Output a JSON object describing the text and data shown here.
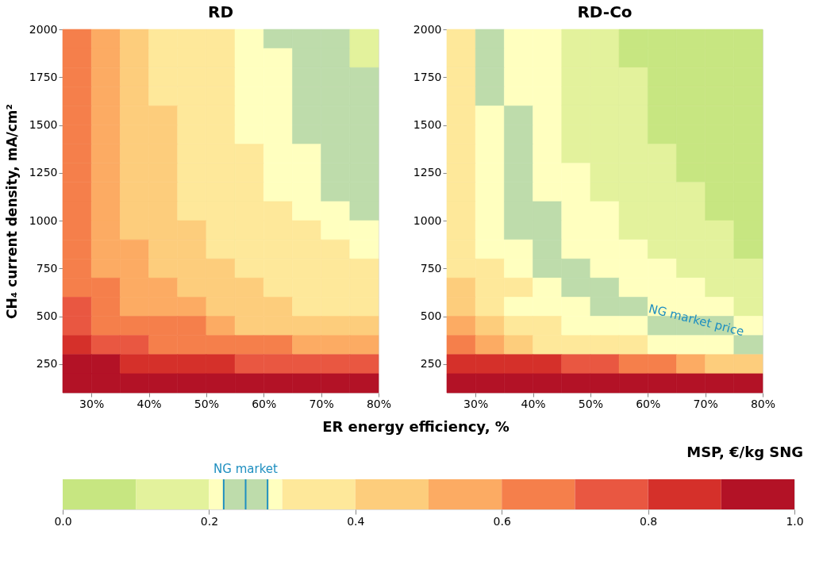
{
  "chart_data": [
    {
      "type": "scatter",
      "marker": "square",
      "title": "RD",
      "xlabel": "ER energy efficiency, %",
      "ylabel": "CH₄ current density,  mA/cm²",
      "xlim": [
        25,
        80
      ],
      "xticks": [
        {
          "value": 30,
          "label": "30%"
        },
        {
          "value": 40,
          "label": "40%"
        },
        {
          "value": 50,
          "label": "50%"
        },
        {
          "value": 60,
          "label": "60%"
        },
        {
          "value": 70,
          "label": "70%"
        },
        {
          "value": 80,
          "label": "80%"
        }
      ],
      "ylim": [
        100,
        2000
      ],
      "yticks": [
        250,
        500,
        750,
        1000,
        1250,
        1500,
        1750,
        2000
      ],
      "series": [
        {
          "x": [
            27.5,
            32.5,
            37.5,
            42.5,
            47.5,
            52.5,
            57.5,
            62.5,
            67.5,
            72.5,
            77.5
          ],
          "values": [
            1950,
            1950,
            1950,
            1950,
            1950,
            1950,
            1950,
            1950,
            1950,
            1950,
            1950
          ],
          "colors": [
            "#f57f4b",
            "#fcab63",
            "#fdcd7c",
            "#fee89a",
            "#fee89a",
            "#fee89a",
            "#ffffbf",
            "#bedcab",
            "#bedcab",
            "#bedcab",
            "#e3f29c"
          ]
        },
        {
          "x": [
            27.5,
            32.5,
            37.5,
            42.5,
            47.5,
            52.5,
            57.5,
            62.5,
            67.5,
            72.5,
            77.5
          ],
          "values": [
            1850,
            1850,
            1850,
            1850,
            1850,
            1850,
            1850,
            1850,
            1850,
            1850,
            1850
          ],
          "colors": [
            "#f57f4b",
            "#fcab63",
            "#fdcd7c",
            "#fee89a",
            "#fee89a",
            "#fee89a",
            "#ffffbf",
            "#ffffbf",
            "#bedcab",
            "#bedcab",
            "#e3f29c"
          ]
        },
        {
          "x": [
            27.5,
            32.5,
            37.5,
            42.5,
            47.5,
            52.5,
            57.5,
            62.5,
            67.5,
            72.5,
            77.5
          ],
          "values": [
            1750,
            1750,
            1750,
            1750,
            1750,
            1750,
            1750,
            1750,
            1750,
            1750,
            1750
          ],
          "colors": [
            "#f57f4b",
            "#fcab63",
            "#fdcd7c",
            "#fee89a",
            "#fee89a",
            "#fee89a",
            "#ffffbf",
            "#ffffbf",
            "#bedcab",
            "#bedcab",
            "#bedcab"
          ]
        },
        {
          "x": [
            27.5,
            32.5,
            37.5,
            42.5,
            47.5,
            52.5,
            57.5,
            62.5,
            67.5,
            72.5,
            77.5
          ],
          "values": [
            1650,
            1650,
            1650,
            1650,
            1650,
            1650,
            1650,
            1650,
            1650,
            1650,
            1650
          ],
          "colors": [
            "#f57f4b",
            "#fcab63",
            "#fdcd7c",
            "#fee89a",
            "#fee89a",
            "#fee89a",
            "#ffffbf",
            "#ffffbf",
            "#bedcab",
            "#bedcab",
            "#bedcab"
          ]
        },
        {
          "x": [
            27.5,
            32.5,
            37.5,
            42.5,
            47.5,
            52.5,
            57.5,
            62.5,
            67.5,
            72.5,
            77.5
          ],
          "values": [
            1550,
            1550,
            1550,
            1550,
            1550,
            1550,
            1550,
            1550,
            1550,
            1550,
            1550
          ],
          "colors": [
            "#f57f4b",
            "#fcab63",
            "#fdcd7c",
            "#fdcd7c",
            "#fee89a",
            "#fee89a",
            "#ffffbf",
            "#ffffbf",
            "#bedcab",
            "#bedcab",
            "#bedcab"
          ]
        },
        {
          "x": [
            27.5,
            32.5,
            37.5,
            42.5,
            47.5,
            52.5,
            57.5,
            62.5,
            67.5,
            72.5,
            77.5
          ],
          "values": [
            1450,
            1450,
            1450,
            1450,
            1450,
            1450,
            1450,
            1450,
            1450,
            1450,
            1450
          ],
          "colors": [
            "#f57f4b",
            "#fcab63",
            "#fdcd7c",
            "#fdcd7c",
            "#fee89a",
            "#fee89a",
            "#ffffbf",
            "#ffffbf",
            "#bedcab",
            "#bedcab",
            "#bedcab"
          ]
        },
        {
          "x": [
            27.5,
            32.5,
            37.5,
            42.5,
            47.5,
            52.5,
            57.5,
            62.5,
            67.5,
            72.5,
            77.5
          ],
          "values": [
            1350,
            1350,
            1350,
            1350,
            1350,
            1350,
            1350,
            1350,
            1350,
            1350,
            1350
          ],
          "colors": [
            "#f57f4b",
            "#fcab63",
            "#fdcd7c",
            "#fdcd7c",
            "#fee89a",
            "#fee89a",
            "#fee89a",
            "#ffffbf",
            "#ffffbf",
            "#bedcab",
            "#bedcab"
          ]
        },
        {
          "x": [
            27.5,
            32.5,
            37.5,
            42.5,
            47.5,
            52.5,
            57.5,
            62.5,
            67.5,
            72.5,
            77.5
          ],
          "values": [
            1250,
            1250,
            1250,
            1250,
            1250,
            1250,
            1250,
            1250,
            1250,
            1250,
            1250
          ],
          "colors": [
            "#f57f4b",
            "#fcab63",
            "#fdcd7c",
            "#fdcd7c",
            "#fee89a",
            "#fee89a",
            "#fee89a",
            "#ffffbf",
            "#ffffbf",
            "#bedcab",
            "#bedcab"
          ]
        },
        {
          "x": [
            27.5,
            32.5,
            37.5,
            42.5,
            47.5,
            52.5,
            57.5,
            62.5,
            67.5,
            72.5,
            77.5
          ],
          "values": [
            1150,
            1150,
            1150,
            1150,
            1150,
            1150,
            1150,
            1150,
            1150,
            1150,
            1150
          ],
          "colors": [
            "#f57f4b",
            "#fcab63",
            "#fdcd7c",
            "#fdcd7c",
            "#fee89a",
            "#fee89a",
            "#fee89a",
            "#ffffbf",
            "#ffffbf",
            "#bedcab",
            "#bedcab"
          ]
        },
        {
          "x": [
            27.5,
            32.5,
            37.5,
            42.5,
            47.5,
            52.5,
            57.5,
            62.5,
            67.5,
            72.5,
            77.5
          ],
          "values": [
            1050,
            1050,
            1050,
            1050,
            1050,
            1050,
            1050,
            1050,
            1050,
            1050,
            1050
          ],
          "colors": [
            "#f57f4b",
            "#fcab63",
            "#fdcd7c",
            "#fdcd7c",
            "#fee89a",
            "#fee89a",
            "#fee89a",
            "#fee89a",
            "#ffffbf",
            "#ffffbf",
            "#bedcab"
          ]
        },
        {
          "x": [
            27.5,
            32.5,
            37.5,
            42.5,
            47.5,
            52.5,
            57.5,
            62.5,
            67.5,
            72.5,
            77.5
          ],
          "values": [
            950,
            950,
            950,
            950,
            950,
            950,
            950,
            950,
            950,
            950,
            950
          ],
          "colors": [
            "#f57f4b",
            "#fcab63",
            "#fdcd7c",
            "#fdcd7c",
            "#fdcd7c",
            "#fee89a",
            "#fee89a",
            "#fee89a",
            "#fee89a",
            "#ffffbf",
            "#ffffbf"
          ]
        },
        {
          "x": [
            27.5,
            32.5,
            37.5,
            42.5,
            47.5,
            52.5,
            57.5,
            62.5,
            67.5,
            72.5,
            77.5
          ],
          "values": [
            850,
            850,
            850,
            850,
            850,
            850,
            850,
            850,
            850,
            850,
            850
          ],
          "colors": [
            "#f57f4b",
            "#fcab63",
            "#fcab63",
            "#fdcd7c",
            "#fdcd7c",
            "#fee89a",
            "#fee89a",
            "#fee89a",
            "#fee89a",
            "#fee89a",
            "#ffffbf"
          ]
        },
        {
          "x": [
            27.5,
            32.5,
            37.5,
            42.5,
            47.5,
            52.5,
            57.5,
            62.5,
            67.5,
            72.5,
            77.5
          ],
          "values": [
            750,
            750,
            750,
            750,
            750,
            750,
            750,
            750,
            750,
            750,
            750
          ],
          "colors": [
            "#f57f4b",
            "#fcab63",
            "#fcab63",
            "#fdcd7c",
            "#fdcd7c",
            "#fdcd7c",
            "#fee89a",
            "#fee89a",
            "#fee89a",
            "#fee89a",
            "#fee89a"
          ]
        },
        {
          "x": [
            27.5,
            32.5,
            37.5,
            42.5,
            47.5,
            52.5,
            57.5,
            62.5,
            67.5,
            72.5,
            77.5
          ],
          "values": [
            650,
            650,
            650,
            650,
            650,
            650,
            650,
            650,
            650,
            650,
            650
          ],
          "colors": [
            "#f57f4b",
            "#f57f4b",
            "#fcab63",
            "#fcab63",
            "#fdcd7c",
            "#fdcd7c",
            "#fdcd7c",
            "#fee89a",
            "#fee89a",
            "#fee89a",
            "#fee89a"
          ]
        },
        {
          "x": [
            27.5,
            32.5,
            37.5,
            42.5,
            47.5,
            52.5,
            57.5,
            62.5,
            67.5,
            72.5,
            77.5
          ],
          "values": [
            550,
            550,
            550,
            550,
            550,
            550,
            550,
            550,
            550,
            550,
            550
          ],
          "colors": [
            "#e95741",
            "#f57f4b",
            "#fcab63",
            "#fcab63",
            "#fcab63",
            "#fdcd7c",
            "#fdcd7c",
            "#fdcd7c",
            "#fee89a",
            "#fee89a",
            "#fee89a"
          ]
        },
        {
          "x": [
            27.5,
            32.5,
            37.5,
            42.5,
            47.5,
            52.5,
            57.5,
            62.5,
            67.5,
            72.5,
            77.5
          ],
          "values": [
            450,
            450,
            450,
            450,
            450,
            450,
            450,
            450,
            450,
            450,
            450
          ],
          "colors": [
            "#e95741",
            "#f57f4b",
            "#f57f4b",
            "#f57f4b",
            "#f57f4b",
            "#fcab63",
            "#fdcd7c",
            "#fdcd7c",
            "#fdcd7c",
            "#fdcd7c",
            "#fdcd7c"
          ]
        },
        {
          "x": [
            27.5,
            32.5,
            37.5,
            42.5,
            47.5,
            52.5,
            57.5,
            62.5,
            67.5,
            72.5,
            77.5
          ],
          "values": [
            350,
            350,
            350,
            350,
            350,
            350,
            350,
            350,
            350,
            350,
            350
          ],
          "colors": [
            "#d5302a",
            "#e95741",
            "#e95741",
            "#f57f4b",
            "#f57f4b",
            "#f57f4b",
            "#f57f4b",
            "#f57f4b",
            "#fcab63",
            "#fcab63",
            "#fcab63"
          ]
        },
        {
          "x": [
            27.5,
            32.5,
            37.5,
            42.5,
            47.5,
            52.5,
            57.5,
            62.5,
            67.5,
            72.5,
            77.5
          ],
          "values": [
            250,
            250,
            250,
            250,
            250,
            250,
            250,
            250,
            250,
            250,
            250
          ],
          "colors": [
            "#b31226",
            "#b31226",
            "#d5302a",
            "#d5302a",
            "#d5302a",
            "#d5302a",
            "#e95741",
            "#e95741",
            "#e95741",
            "#e95741",
            "#e95741"
          ]
        },
        {
          "x": [
            27.5,
            32.5,
            37.5,
            42.5,
            47.5,
            52.5,
            57.5,
            62.5,
            67.5,
            72.5,
            77.5
          ],
          "values": [
            150,
            150,
            150,
            150,
            150,
            150,
            150,
            150,
            150,
            150,
            150
          ],
          "colors": [
            "#b31226",
            "#b31226",
            "#b31226",
            "#b31226",
            "#b31226",
            "#b31226",
            "#b31226",
            "#b31226",
            "#b31226",
            "#b31226",
            "#b31226"
          ]
        }
      ]
    },
    {
      "type": "scatter",
      "marker": "square",
      "title": "RD-Co",
      "xlim": [
        25,
        80
      ],
      "xticks": [
        {
          "value": 30,
          "label": "30%"
        },
        {
          "value": 40,
          "label": "40%"
        },
        {
          "value": 50,
          "label": "50%"
        },
        {
          "value": 60,
          "label": "60%"
        },
        {
          "value": 70,
          "label": "70%"
        },
        {
          "value": 80,
          "label": "80%"
        }
      ],
      "ylim": [
        100,
        2000
      ],
      "yticks": [
        250,
        500,
        750,
        1000,
        1250,
        1500,
        1750,
        2000
      ],
      "annotations": [
        "NG market price"
      ],
      "series": [
        {
          "x": [
            27.5,
            32.5,
            37.5,
            42.5,
            47.5,
            52.5,
            57.5,
            62.5,
            67.5,
            72.5,
            77.5
          ],
          "values": [
            1950,
            1950,
            1950,
            1950,
            1950,
            1950,
            1950,
            1950,
            1950,
            1950,
            1950
          ],
          "colors": [
            "#fee89a",
            "#bedcab",
            "#ffffbf",
            "#ffffbf",
            "#e3f29c",
            "#e3f29c",
            "#c7e681",
            "#c7e681",
            "#c7e681",
            "#c7e681",
            "#c7e681"
          ]
        },
        {
          "x": [
            27.5,
            32.5,
            37.5,
            42.5,
            47.5,
            52.5,
            57.5,
            62.5,
            67.5,
            72.5,
            77.5
          ],
          "values": [
            1850,
            1850,
            1850,
            1850,
            1850,
            1850,
            1850,
            1850,
            1850,
            1850,
            1850
          ],
          "colors": [
            "#fee89a",
            "#bedcab",
            "#ffffbf",
            "#ffffbf",
            "#e3f29c",
            "#e3f29c",
            "#c7e681",
            "#c7e681",
            "#c7e681",
            "#c7e681",
            "#c7e681"
          ]
        },
        {
          "x": [
            27.5,
            32.5,
            37.5,
            42.5,
            47.5,
            52.5,
            57.5,
            62.5,
            67.5,
            72.5,
            77.5
          ],
          "values": [
            1750,
            1750,
            1750,
            1750,
            1750,
            1750,
            1750,
            1750,
            1750,
            1750,
            1750
          ],
          "colors": [
            "#fee89a",
            "#bedcab",
            "#ffffbf",
            "#ffffbf",
            "#e3f29c",
            "#e3f29c",
            "#e3f29c",
            "#c7e681",
            "#c7e681",
            "#c7e681",
            "#c7e681"
          ]
        },
        {
          "x": [
            27.5,
            32.5,
            37.5,
            42.5,
            47.5,
            52.5,
            57.5,
            62.5,
            67.5,
            72.5,
            77.5
          ],
          "values": [
            1650,
            1650,
            1650,
            1650,
            1650,
            1650,
            1650,
            1650,
            1650,
            1650,
            1650
          ],
          "colors": [
            "#fee89a",
            "#bedcab",
            "#ffffbf",
            "#ffffbf",
            "#e3f29c",
            "#e3f29c",
            "#e3f29c",
            "#c7e681",
            "#c7e681",
            "#c7e681",
            "#c7e681"
          ]
        },
        {
          "x": [
            27.5,
            32.5,
            37.5,
            42.5,
            47.5,
            52.5,
            57.5,
            62.5,
            67.5,
            72.5,
            77.5
          ],
          "values": [
            1550,
            1550,
            1550,
            1550,
            1550,
            1550,
            1550,
            1550,
            1550,
            1550,
            1550
          ],
          "colors": [
            "#fee89a",
            "#ffffbf",
            "#bedcab",
            "#ffffbf",
            "#e3f29c",
            "#e3f29c",
            "#e3f29c",
            "#c7e681",
            "#c7e681",
            "#c7e681",
            "#c7e681"
          ]
        },
        {
          "x": [
            27.5,
            32.5,
            37.5,
            42.5,
            47.5,
            52.5,
            57.5,
            62.5,
            67.5,
            72.5,
            77.5
          ],
          "values": [
            1450,
            1450,
            1450,
            1450,
            1450,
            1450,
            1450,
            1450,
            1450,
            1450,
            1450
          ],
          "colors": [
            "#fee89a",
            "#ffffbf",
            "#bedcab",
            "#ffffbf",
            "#e3f29c",
            "#e3f29c",
            "#e3f29c",
            "#c7e681",
            "#c7e681",
            "#c7e681",
            "#c7e681"
          ]
        },
        {
          "x": [
            27.5,
            32.5,
            37.5,
            42.5,
            47.5,
            52.5,
            57.5,
            62.5,
            67.5,
            72.5,
            77.5
          ],
          "values": [
            1350,
            1350,
            1350,
            1350,
            1350,
            1350,
            1350,
            1350,
            1350,
            1350,
            1350
          ],
          "colors": [
            "#fee89a",
            "#ffffbf",
            "#bedcab",
            "#ffffbf",
            "#e3f29c",
            "#e3f29c",
            "#e3f29c",
            "#e3f29c",
            "#c7e681",
            "#c7e681",
            "#c7e681"
          ]
        },
        {
          "x": [
            27.5,
            32.5,
            37.5,
            42.5,
            47.5,
            52.5,
            57.5,
            62.5,
            67.5,
            72.5,
            77.5
          ],
          "values": [
            1250,
            1250,
            1250,
            1250,
            1250,
            1250,
            1250,
            1250,
            1250,
            1250,
            1250
          ],
          "colors": [
            "#fee89a",
            "#ffffbf",
            "#bedcab",
            "#ffffbf",
            "#ffffbf",
            "#e3f29c",
            "#e3f29c",
            "#e3f29c",
            "#c7e681",
            "#c7e681",
            "#c7e681"
          ]
        },
        {
          "x": [
            27.5,
            32.5,
            37.5,
            42.5,
            47.5,
            52.5,
            57.5,
            62.5,
            67.5,
            72.5,
            77.5
          ],
          "values": [
            1150,
            1150,
            1150,
            1150,
            1150,
            1150,
            1150,
            1150,
            1150,
            1150,
            1150
          ],
          "colors": [
            "#fee89a",
            "#ffffbf",
            "#bedcab",
            "#ffffbf",
            "#ffffbf",
            "#e3f29c",
            "#e3f29c",
            "#e3f29c",
            "#e3f29c",
            "#c7e681",
            "#c7e681"
          ]
        },
        {
          "x": [
            27.5,
            32.5,
            37.5,
            42.5,
            47.5,
            52.5,
            57.5,
            62.5,
            67.5,
            72.5,
            77.5
          ],
          "values": [
            1050,
            1050,
            1050,
            1050,
            1050,
            1050,
            1050,
            1050,
            1050,
            1050,
            1050
          ],
          "colors": [
            "#fee89a",
            "#ffffbf",
            "#bedcab",
            "#bedcab",
            "#ffffbf",
            "#ffffbf",
            "#e3f29c",
            "#e3f29c",
            "#e3f29c",
            "#c7e681",
            "#c7e681"
          ]
        },
        {
          "x": [
            27.5,
            32.5,
            37.5,
            42.5,
            47.5,
            52.5,
            57.5,
            62.5,
            67.5,
            72.5,
            77.5
          ],
          "values": [
            950,
            950,
            950,
            950,
            950,
            950,
            950,
            950,
            950,
            950,
            950
          ],
          "colors": [
            "#fee89a",
            "#ffffbf",
            "#bedcab",
            "#bedcab",
            "#ffffbf",
            "#ffffbf",
            "#e3f29c",
            "#e3f29c",
            "#e3f29c",
            "#e3f29c",
            "#c7e681"
          ]
        },
        {
          "x": [
            27.5,
            32.5,
            37.5,
            42.5,
            47.5,
            52.5,
            57.5,
            62.5,
            67.5,
            72.5,
            77.5
          ],
          "values": [
            850,
            850,
            850,
            850,
            850,
            850,
            850,
            850,
            850,
            850,
            850
          ],
          "colors": [
            "#fee89a",
            "#ffffbf",
            "#ffffbf",
            "#bedcab",
            "#ffffbf",
            "#ffffbf",
            "#ffffbf",
            "#e3f29c",
            "#e3f29c",
            "#e3f29c",
            "#c7e681"
          ]
        },
        {
          "x": [
            27.5,
            32.5,
            37.5,
            42.5,
            47.5,
            52.5,
            57.5,
            62.5,
            67.5,
            72.5,
            77.5
          ],
          "values": [
            750,
            750,
            750,
            750,
            750,
            750,
            750,
            750,
            750,
            750,
            750
          ],
          "colors": [
            "#fee89a",
            "#fee89a",
            "#ffffbf",
            "#bedcab",
            "#bedcab",
            "#ffffbf",
            "#ffffbf",
            "#ffffbf",
            "#e3f29c",
            "#e3f29c",
            "#e3f29c"
          ]
        },
        {
          "x": [
            27.5,
            32.5,
            37.5,
            42.5,
            47.5,
            52.5,
            57.5,
            62.5,
            67.5,
            72.5,
            77.5
          ],
          "values": [
            650,
            650,
            650,
            650,
            650,
            650,
            650,
            650,
            650,
            650,
            650
          ],
          "colors": [
            "#fdcd7c",
            "#fee89a",
            "#fee89a",
            "#ffffbf",
            "#bedcab",
            "#bedcab",
            "#ffffbf",
            "#ffffbf",
            "#ffffbf",
            "#e3f29c",
            "#e3f29c"
          ]
        },
        {
          "x": [
            27.5,
            32.5,
            37.5,
            42.5,
            47.5,
            52.5,
            57.5,
            62.5,
            67.5,
            72.5,
            77.5
          ],
          "values": [
            550,
            550,
            550,
            550,
            550,
            550,
            550,
            550,
            550,
            550,
            550
          ],
          "colors": [
            "#fdcd7c",
            "#fee89a",
            "#ffffbf",
            "#ffffbf",
            "#ffffbf",
            "#bedcab",
            "#bedcab",
            "#ffffbf",
            "#ffffbf",
            "#ffffbf",
            "#e3f29c"
          ]
        },
        {
          "x": [
            27.5,
            32.5,
            37.5,
            42.5,
            47.5,
            52.5,
            57.5,
            62.5,
            67.5,
            72.5,
            77.5
          ],
          "values": [
            450,
            450,
            450,
            450,
            450,
            450,
            450,
            450,
            450,
            450,
            450
          ],
          "colors": [
            "#fcab63",
            "#fdcd7c",
            "#fee89a",
            "#fee89a",
            "#ffffbf",
            "#ffffbf",
            "#ffffbf",
            "#bedcab",
            "#bedcab",
            "#bedcab",
            "#ffffbf"
          ]
        },
        {
          "x": [
            27.5,
            32.5,
            37.5,
            42.5,
            47.5,
            52.5,
            57.5,
            62.5,
            67.5,
            72.5,
            77.5
          ],
          "values": [
            350,
            350,
            350,
            350,
            350,
            350,
            350,
            350,
            350,
            350,
            350
          ],
          "colors": [
            "#f57f4b",
            "#fcab63",
            "#fdcd7c",
            "#fee89a",
            "#fee89a",
            "#fee89a",
            "#fee89a",
            "#ffffbf",
            "#ffffbf",
            "#ffffbf",
            "#bedcab"
          ]
        },
        {
          "x": [
            27.5,
            32.5,
            37.5,
            42.5,
            47.5,
            52.5,
            57.5,
            62.5,
            67.5,
            72.5,
            77.5
          ],
          "values": [
            250,
            250,
            250,
            250,
            250,
            250,
            250,
            250,
            250,
            250,
            250
          ],
          "colors": [
            "#d5302a",
            "#d5302a",
            "#d5302a",
            "#d5302a",
            "#e95741",
            "#e95741",
            "#f57f4b",
            "#f57f4b",
            "#fcab63",
            "#fdcd7c",
            "#fdcd7c"
          ]
        },
        {
          "x": [
            27.5,
            32.5,
            37.5,
            42.5,
            47.5,
            52.5,
            57.5,
            62.5,
            67.5,
            72.5,
            77.5
          ],
          "values": [
            150,
            150,
            150,
            150,
            150,
            150,
            150,
            150,
            150,
            150,
            150
          ],
          "colors": [
            "#b31226",
            "#b31226",
            "#b31226",
            "#b31226",
            "#b31226",
            "#b31226",
            "#b31226",
            "#b31226",
            "#b31226",
            "#b31226",
            "#b31226"
          ]
        }
      ]
    },
    {
      "type": "bar",
      "orientation": "horizontal",
      "stacked": true,
      "title": "MSP, €/kg SNG",
      "categories": [
        null
      ],
      "xlim": [
        0,
        1
      ],
      "xticks": [
        {
          "value": 0,
          "label": "0.0"
        },
        {
          "value": 0.2,
          "label": "0.2"
        },
        {
          "value": 0.4,
          "label": "0.4"
        },
        {
          "value": 0.6,
          "label": "0.6"
        },
        {
          "value": 0.8,
          "label": "0.8"
        },
        {
          "value": 1,
          "label": "1.0"
        }
      ],
      "bands": [
        {
          "axis": "x",
          "from": 0.22,
          "to": 0.28,
          "label": "NG market",
          "color": "#bedcab"
        }
      ],
      "ref_lines": [
        {
          "axis": "x",
          "value": 0.22,
          "color": "#1f8fc0"
        },
        {
          "axis": "x",
          "value": 0.25,
          "color": "#1f8fc0"
        },
        {
          "axis": "x",
          "value": 0.28,
          "color": "#1f8fc0"
        }
      ],
      "series": [
        {
          "color": "#c7e681",
          "values": [
            0.1
          ]
        },
        {
          "color": "#e3f29c",
          "values": [
            0.1
          ]
        },
        {
          "color": "#ffffbf",
          "values": [
            0.1
          ]
        },
        {
          "color": "#fee89a",
          "values": [
            0.1
          ]
        },
        {
          "color": "#fdcd7c",
          "values": [
            0.1
          ]
        },
        {
          "color": "#fcab63",
          "values": [
            0.1
          ]
        },
        {
          "color": "#f57f4b",
          "values": [
            0.1
          ]
        },
        {
          "color": "#e95741",
          "values": [
            0.1
          ]
        },
        {
          "color": "#d5302a",
          "values": [
            0.1
          ]
        },
        {
          "color": "#b31226",
          "values": [
            0.1
          ]
        }
      ]
    }
  ]
}
